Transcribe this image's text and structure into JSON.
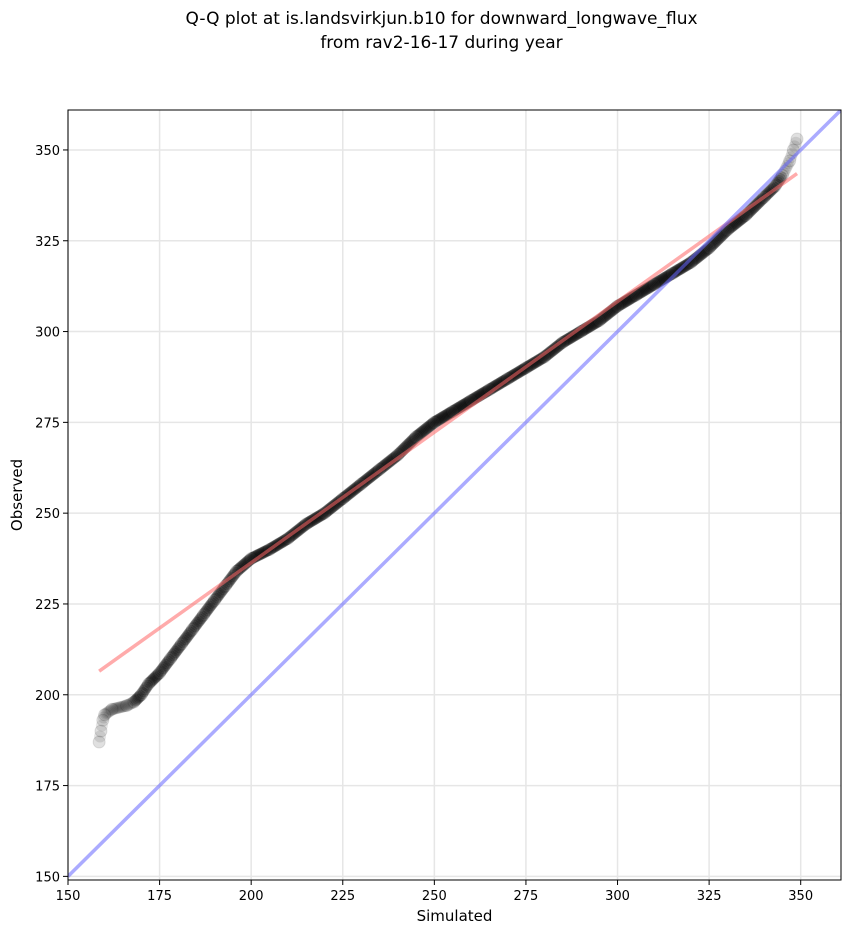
{
  "chart_data": {
    "type": "scatter",
    "title_line1": "Q-Q plot at is.landsvirkjun.b10 for downward_longwave_flux",
    "title_line2": "from rav2-16-17 during year",
    "xlabel": "Simulated",
    "ylabel": "Observed",
    "xlim": [
      150,
      361
    ],
    "ylim": [
      149,
      361
    ],
    "xticks": [
      150,
      175,
      200,
      225,
      250,
      275,
      300,
      325,
      350
    ],
    "yticks": [
      150,
      175,
      200,
      225,
      250,
      275,
      300,
      325,
      350
    ],
    "grid": true,
    "quantiles": [
      [
        158.5,
        187
      ],
      [
        159,
        190
      ],
      [
        159.5,
        193
      ],
      [
        160,
        194.5
      ],
      [
        162,
        196
      ],
      [
        166,
        197
      ],
      [
        168,
        198
      ],
      [
        170,
        200
      ],
      [
        172,
        203
      ],
      [
        175,
        206
      ],
      [
        178,
        210
      ],
      [
        181,
        214
      ],
      [
        184,
        218
      ],
      [
        187,
        222
      ],
      [
        190,
        226
      ],
      [
        193,
        230
      ],
      [
        196,
        234
      ],
      [
        200,
        237.5
      ],
      [
        205,
        240
      ],
      [
        210,
        243
      ],
      [
        215,
        247
      ],
      [
        220,
        250
      ],
      [
        225,
        254
      ],
      [
        230,
        258
      ],
      [
        235,
        262
      ],
      [
        240,
        266
      ],
      [
        245,
        271
      ],
      [
        250,
        275
      ],
      [
        255,
        278
      ],
      [
        260,
        281
      ],
      [
        265,
        284
      ],
      [
        270,
        287
      ],
      [
        275,
        290
      ],
      [
        280,
        293
      ],
      [
        285,
        297
      ],
      [
        290,
        300
      ],
      [
        295,
        303
      ],
      [
        300,
        307
      ],
      [
        305,
        310
      ],
      [
        310,
        313
      ],
      [
        315,
        316
      ],
      [
        320,
        319
      ],
      [
        325,
        323
      ],
      [
        330,
        328
      ],
      [
        335,
        332
      ],
      [
        340,
        337
      ],
      [
        343,
        340
      ],
      [
        345,
        343
      ],
      [
        347,
        347
      ],
      [
        348,
        350
      ],
      [
        349,
        353
      ]
    ],
    "fit_line": [
      [
        158.5,
        206.5
      ],
      [
        349,
        343.5
      ]
    ],
    "identity_line": [
      [
        150,
        150
      ],
      [
        361,
        361
      ]
    ],
    "colors": {
      "points": "#000000",
      "fit": "#ff6666",
      "identity": "#6666ff",
      "grid": "#e6e6e6"
    }
  }
}
